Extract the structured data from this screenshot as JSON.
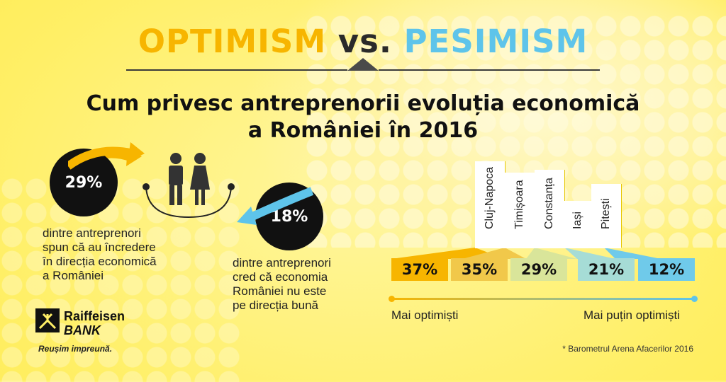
{
  "headline": {
    "optimism": "OPTIMISM",
    "vs": "vs.",
    "pesimism": "PESIMISM"
  },
  "subtitle": {
    "line1": "Cum privesc antreprenorii evoluția economică",
    "line2": "a României în 2016"
  },
  "left_stat": {
    "value": "29%",
    "text": [
      "dintre antreprenori",
      "spun că au încredere",
      "în direcția economică",
      "a României"
    ]
  },
  "right_stat": {
    "value": "18%",
    "text": [
      "dintre antreprenori",
      "cred că economia",
      "României nu este",
      "pe direcția bună"
    ]
  },
  "cities": [
    {
      "name": "Cluj-Napoca",
      "value": "37%",
      "color": "#f7b500"
    },
    {
      "name": "Timișoara",
      "value": "35%",
      "color": "#f1c84a"
    },
    {
      "name": "Constanța",
      "value": "29%",
      "color": "#d9e59a"
    },
    {
      "name": "Iași",
      "value": "21%",
      "color": "#a6dcd6"
    },
    {
      "name": "Pitești",
      "value": "12%",
      "color": "#6fcaea"
    }
  ],
  "axis": {
    "left_label": "Mai optimiști",
    "right_label": "Mai puțin optimiști"
  },
  "brand": {
    "name_line1": "Raiffeisen",
    "name_line2": "BANK",
    "tagline": "Reușim impreună."
  },
  "source": "* Barometrul Arena Afacerilor 2016",
  "colors": {
    "optimism": "#f7b500",
    "pesimism": "#5ec4ea",
    "dark": "#111111"
  }
}
